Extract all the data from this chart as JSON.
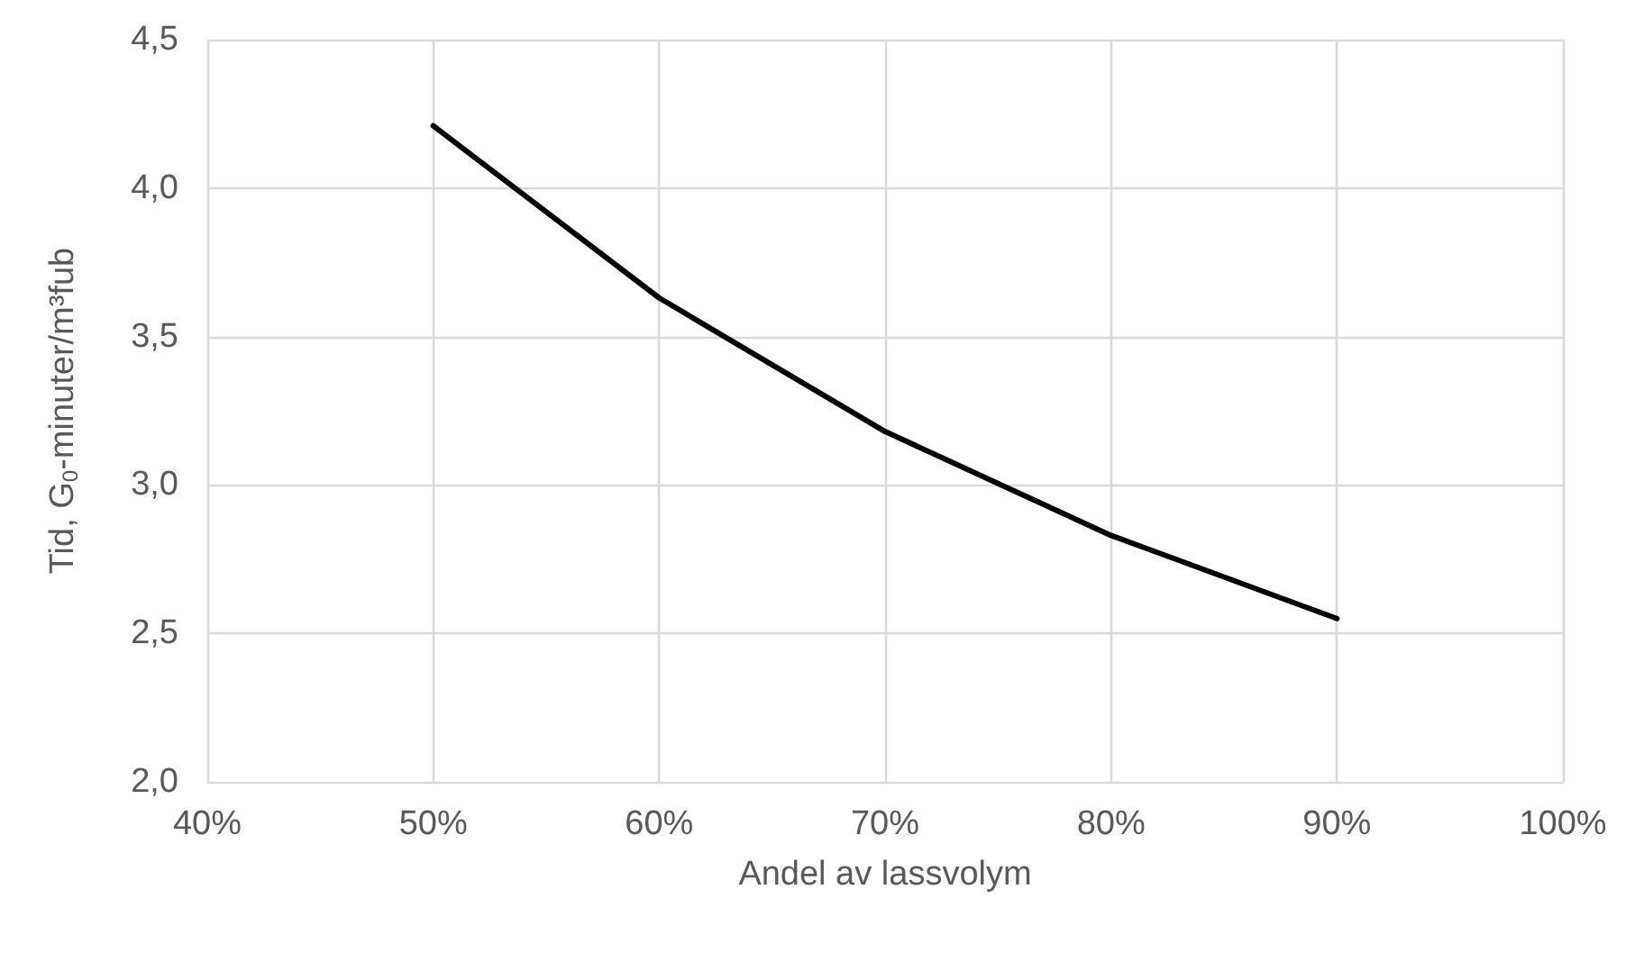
{
  "chart_data": {
    "type": "line",
    "xlabel": "Andel av lassvolym",
    "ylabel": "Tid, G$_{0}$-minuter/m³fub",
    "x": [
      50,
      60,
      70,
      80,
      90
    ],
    "series": [
      {
        "color": "#000000",
        "values": [
          4.21,
          3.63,
          3.18,
          2.83,
          2.55
        ]
      }
    ],
    "xlim": [
      40,
      100
    ],
    "xticks": [
      {
        "value": 40,
        "label": "40%"
      },
      {
        "value": 50,
        "label": "50%"
      },
      {
        "value": 60,
        "label": "60%"
      },
      {
        "value": 70,
        "label": "70%"
      },
      {
        "value": 80,
        "label": "80%"
      },
      {
        "value": 90,
        "label": "90%"
      },
      {
        "value": 100,
        "label": "100%"
      }
    ],
    "ylim": [
      2,
      4.5
    ],
    "yticks": [
      {
        "value": 2,
        "label": "2,0"
      },
      {
        "value": 2.5,
        "label": "2,5"
      },
      {
        "value": 3,
        "label": "3,0"
      },
      {
        "value": 3.5,
        "label": "3,5"
      },
      {
        "value": 4,
        "label": "4,0"
      },
      {
        "value": 4.5,
        "label": "4,5"
      }
    ],
    "grid": true,
    "marker": "none",
    "line_style": "solid"
  }
}
